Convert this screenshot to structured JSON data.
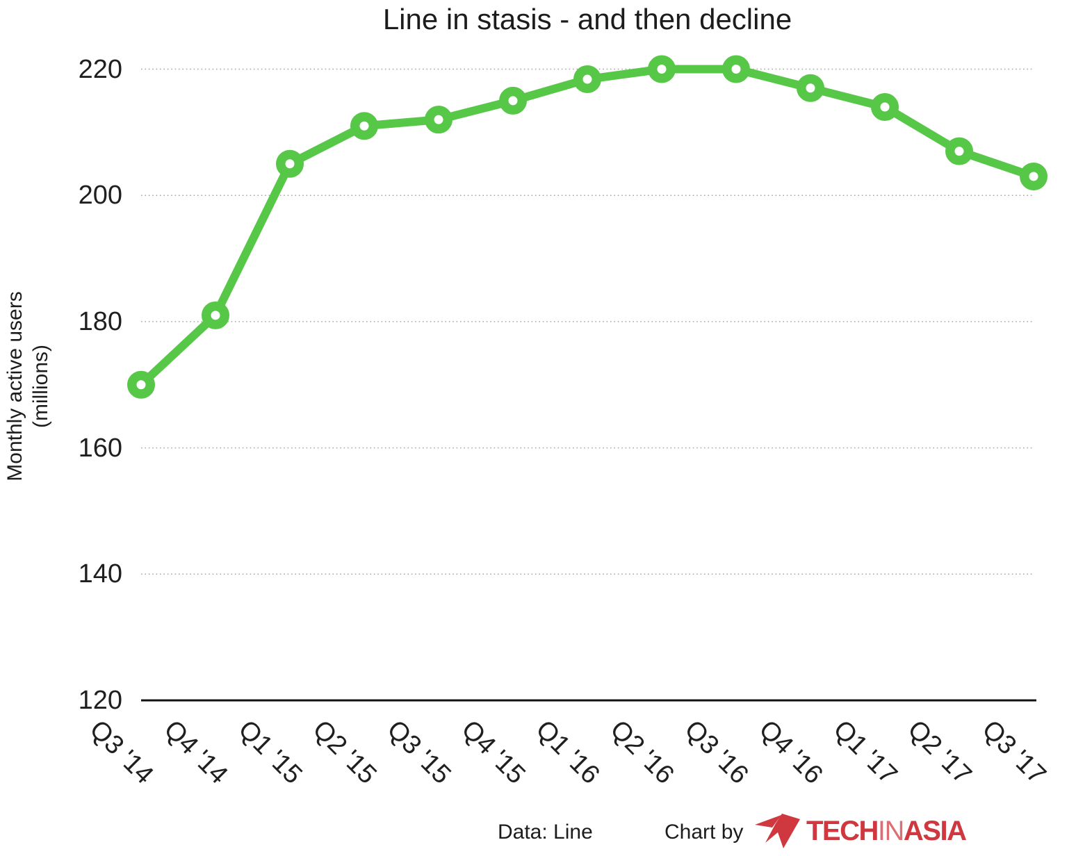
{
  "chart_data": {
    "type": "line",
    "title": "Line in stasis - and then decline",
    "ylabel_lines": [
      "Monthly active users",
      "(millions)"
    ],
    "xlabel": "",
    "categories": [
      "Q3 '14",
      "Q4 '14",
      "Q1 '15",
      "Q2 '15",
      "Q3 '15",
      "Q4 '15",
      "Q1 '16",
      "Q2 '16",
      "Q3 '16",
      "Q4 '16",
      "Q1 '17",
      "Q2 '17",
      "Q3 '17"
    ],
    "values": [
      170,
      181,
      205,
      211,
      212,
      215,
      218.4,
      220,
      220,
      217,
      214,
      207,
      203
    ],
    "ylim": [
      120,
      220
    ],
    "yticks": [
      120,
      140,
      160,
      180,
      200,
      220
    ],
    "grid": "horizontal-dotted",
    "legend": "none",
    "line_color": "#57C747",
    "marker": "open-circle",
    "gridline_color": "#a6a6a6",
    "axis_color": "#111111"
  },
  "footer": {
    "data_source": "Data: Line",
    "credit_prefix": "Chart by",
    "logo": {
      "text_parts": [
        "TECH",
        "IN",
        "ASIA"
      ],
      "color": "#D0383F"
    }
  }
}
